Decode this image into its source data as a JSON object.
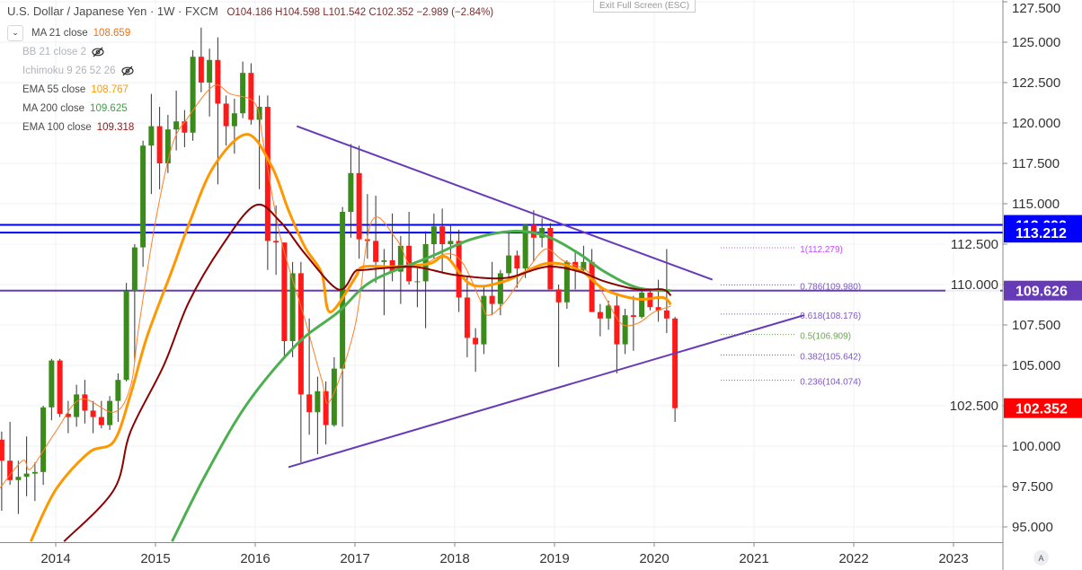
{
  "header": {
    "symbol": "U.S. Dollar / Japanese Yen · 1W · FXCM",
    "ohlc": "O104.186  H104.598  L101.542  C102.352  −2.989 (−2.84%)"
  },
  "tooltip": "Exit Full Screen (ESC)",
  "legend": [
    {
      "name": "MA 21 close",
      "value": "108.659",
      "color": "#ff6d00",
      "visible": true
    },
    {
      "name": "BB 21 close 2",
      "value": "",
      "visible": false,
      "icon": "eye-crossed-icon"
    },
    {
      "name": "Ichimoku 9 26 52 26",
      "value": "",
      "visible": false,
      "icon": "eye-crossed-icon"
    },
    {
      "name": "EMA 55 close",
      "value": "108.767",
      "color": "#ff9800",
      "visible": true
    },
    {
      "name": "MA 200 close",
      "value": "109.625",
      "color": "#43a047",
      "visible": true
    },
    {
      "name": "EMA 100 close",
      "value": "109.318",
      "color": "#a31515",
      "visible": true
    }
  ],
  "auto_button": "A",
  "chart_data": {
    "type": "candlestick",
    "interval": "1W",
    "colors": {
      "up": "#3a8a1c",
      "down": "#ff1a1a",
      "wick": "#333333",
      "grid": "#eef0f4"
    },
    "ylim": [
      93.8,
      128.0
    ],
    "xlim": [
      "2013-06",
      "2023-06"
    ],
    "y_ticks": [
      "127.500",
      "125.000",
      "122.500",
      "120.000",
      "117.500",
      "115.000",
      "112.500",
      "110.000",
      "107.500",
      "105.000",
      "102.500",
      "100.000",
      "97.500",
      "95.000"
    ],
    "x_ticks": [
      "2014",
      "2015",
      "2016",
      "2017",
      "2018",
      "2019",
      "2020",
      "2021",
      "2022",
      "2023"
    ],
    "candles": [
      [
        "2013-06",
        100.4,
        100.9,
        96.0,
        99.1
      ],
      [
        "2013-07",
        99.1,
        101.5,
        97.6,
        97.9
      ],
      [
        "2013-08",
        97.9,
        99.1,
        95.8,
        98.1
      ],
      [
        "2013-09",
        98.1,
        100.6,
        96.9,
        98.3
      ],
      [
        "2013-10",
        98.3,
        99.0,
        96.6,
        98.4
      ],
      [
        "2013-11",
        98.4,
        102.5,
        97.6,
        102.4
      ],
      [
        "2013-12",
        102.4,
        105.4,
        101.6,
        105.3
      ],
      [
        "2014-01",
        105.3,
        105.4,
        101.8,
        102.0
      ],
      [
        "2014-02",
        102.0,
        102.8,
        100.8,
        101.8
      ],
      [
        "2014-03",
        101.8,
        103.8,
        101.2,
        103.2
      ],
      [
        "2014-04",
        103.2,
        104.1,
        101.4,
        102.2
      ],
      [
        "2014-05",
        102.2,
        102.8,
        100.8,
        101.8
      ],
      [
        "2014-06",
        101.8,
        102.8,
        101.1,
        101.3
      ],
      [
        "2014-07",
        101.3,
        103.1,
        101.0,
        102.8
      ],
      [
        "2014-08",
        102.8,
        104.5,
        101.5,
        104.1
      ],
      [
        "2014-09",
        104.1,
        110.1,
        104.0,
        109.6
      ],
      [
        "2014-10",
        109.6,
        112.5,
        105.2,
        112.3
      ],
      [
        "2014-11",
        112.3,
        118.9,
        111.1,
        118.6
      ],
      [
        "2014-12",
        118.6,
        121.8,
        115.6,
        119.8
      ],
      [
        "2015-01",
        119.8,
        121.0,
        115.9,
        117.5
      ],
      [
        "2015-02",
        117.5,
        120.5,
        116.9,
        119.6
      ],
      [
        "2015-03",
        119.6,
        122.0,
        118.3,
        120.1
      ],
      [
        "2015-04",
        120.1,
        120.8,
        118.5,
        119.4
      ],
      [
        "2015-05",
        119.4,
        124.5,
        118.9,
        124.1
      ],
      [
        "2015-06",
        124.1,
        125.9,
        121.9,
        122.5
      ],
      [
        "2015-07",
        122.5,
        124.6,
        120.4,
        123.9
      ],
      [
        "2015-08",
        123.9,
        125.3,
        116.2,
        121.2
      ],
      [
        "2015-09",
        121.2,
        121.7,
        118.6,
        119.8
      ],
      [
        "2015-10",
        119.8,
        121.5,
        118.1,
        120.6
      ],
      [
        "2015-11",
        120.6,
        123.8,
        120.3,
        123.1
      ],
      [
        "2015-12",
        123.1,
        123.7,
        119.9,
        120.2
      ],
      [
        "2016-01",
        120.2,
        121.7,
        115.9,
        121.0
      ],
      [
        "2016-02",
        121.0,
        121.7,
        110.9,
        112.7
      ],
      [
        "2016-03",
        112.7,
        114.9,
        110.6,
        112.6
      ],
      [
        "2016-04",
        112.6,
        112.6,
        105.5,
        106.5
      ],
      [
        "2016-05",
        106.5,
        111.4,
        105.5,
        110.7
      ],
      [
        "2016-06",
        110.7,
        111.4,
        99.0,
        103.2
      ],
      [
        "2016-07",
        103.2,
        107.9,
        100.7,
        102.1
      ],
      [
        "2016-08",
        102.1,
        104.3,
        99.5,
        103.4
      ],
      [
        "2016-09",
        103.4,
        104.0,
        100.1,
        101.3
      ],
      [
        "2016-10",
        101.3,
        105.5,
        101.2,
        104.8
      ],
      [
        "2016-11",
        104.8,
        114.8,
        101.2,
        114.5
      ],
      [
        "2016-12",
        114.5,
        118.7,
        112.9,
        116.9
      ],
      [
        "2017-01",
        116.9,
        118.6,
        111.6,
        112.8
      ],
      [
        "2017-02",
        112.8,
        115.6,
        111.6,
        112.7
      ],
      [
        "2017-03",
        112.7,
        115.5,
        110.1,
        111.4
      ],
      [
        "2017-04",
        111.4,
        112.2,
        108.1,
        111.5
      ],
      [
        "2017-05",
        111.5,
        114.4,
        110.2,
        110.8
      ],
      [
        "2017-06",
        110.8,
        113.0,
        108.8,
        112.4
      ],
      [
        "2017-07",
        112.4,
        114.5,
        110.0,
        110.2
      ],
      [
        "2017-08",
        110.2,
        111.0,
        108.6,
        110.2
      ],
      [
        "2017-09",
        110.2,
        113.3,
        107.3,
        112.5
      ],
      [
        "2017-10",
        112.5,
        114.4,
        111.6,
        113.6
      ],
      [
        "2017-11",
        113.6,
        114.7,
        110.8,
        112.5
      ],
      [
        "2017-12",
        112.5,
        113.7,
        111.4,
        112.7
      ],
      [
        "2018-01",
        112.7,
        113.4,
        108.3,
        109.2
      ],
      [
        "2018-02",
        109.2,
        110.5,
        105.5,
        106.7
      ],
      [
        "2018-03",
        106.7,
        107.3,
        104.6,
        106.3
      ],
      [
        "2018-04",
        106.3,
        109.9,
        105.7,
        109.3
      ],
      [
        "2018-05",
        109.3,
        111.4,
        108.1,
        108.8
      ],
      [
        "2018-06",
        108.8,
        110.9,
        108.1,
        110.7
      ],
      [
        "2018-07",
        110.7,
        113.2,
        110.3,
        111.8
      ],
      [
        "2018-08",
        111.8,
        112.1,
        109.8,
        111.0
      ],
      [
        "2018-09",
        111.0,
        113.7,
        110.4,
        113.7
      ],
      [
        "2018-10",
        113.7,
        114.6,
        111.4,
        112.9
      ],
      [
        "2018-11",
        112.9,
        114.1,
        112.3,
        113.5
      ],
      [
        "2018-12",
        113.5,
        113.8,
        109.9,
        109.7
      ],
      [
        "2019-01",
        109.7,
        110.0,
        104.9,
        108.9
      ],
      [
        "2019-02",
        108.9,
        111.5,
        108.5,
        111.4
      ],
      [
        "2019-03",
        111.4,
        112.1,
        109.7,
        110.9
      ],
      [
        "2019-04",
        110.9,
        112.4,
        110.8,
        111.4
      ],
      [
        "2019-05",
        111.4,
        112.2,
        108.3,
        108.3
      ],
      [
        "2019-06",
        108.3,
        108.8,
        106.8,
        107.9
      ],
      [
        "2019-07",
        107.9,
        109.0,
        107.2,
        108.7
      ],
      [
        "2019-08",
        108.7,
        109.3,
        104.5,
        106.3
      ],
      [
        "2019-09",
        106.3,
        108.5,
        105.7,
        108.1
      ],
      [
        "2019-10",
        108.1,
        109.3,
        105.9,
        108.0
      ],
      [
        "2019-11",
        108.0,
        109.7,
        107.9,
        109.5
      ],
      [
        "2019-12",
        109.5,
        109.7,
        108.4,
        108.6
      ],
      [
        "2020-01",
        108.6,
        110.3,
        107.7,
        108.4
      ],
      [
        "2020-02",
        108.4,
        112.2,
        107.0,
        107.9
      ],
      [
        "2020-03",
        107.9,
        108.0,
        101.5,
        102.352
      ]
    ],
    "indicators": [
      {
        "name": "MA 21 close",
        "color": "#ff7f27",
        "points": [
          [
            "2013-06",
            97.2
          ],
          [
            "2013-09",
            99.1
          ],
          [
            "2013-10",
            98.6
          ],
          [
            "2014-01",
            100.9
          ],
          [
            "2014-04",
            102.9
          ],
          [
            "2014-08",
            102.1
          ],
          [
            "2014-10",
            103.7
          ],
          [
            "2014-11",
            107.4
          ],
          [
            "2015-01",
            113.9
          ],
          [
            "2015-03",
            118.6
          ],
          [
            "2015-05",
            120.4
          ],
          [
            "2015-08",
            122.3
          ],
          [
            "2015-10",
            121.8
          ],
          [
            "2016-01",
            121.2
          ],
          [
            "2016-02",
            118.7
          ],
          [
            "2016-04",
            113.0
          ],
          [
            "2016-07",
            107.8
          ],
          [
            "2016-09",
            104.1
          ],
          [
            "2016-10",
            102.8
          ],
          [
            "2017-01",
            107.4
          ],
          [
            "2017-03",
            113.9
          ],
          [
            "2017-06",
            112.8
          ],
          [
            "2017-08",
            111.1
          ],
          [
            "2017-12",
            111.9
          ],
          [
            "2018-02",
            111.3
          ],
          [
            "2018-04",
            109.1
          ],
          [
            "2018-05",
            108.1
          ],
          [
            "2018-07",
            108.9
          ],
          [
            "2018-10",
            111.1
          ],
          [
            "2018-12",
            112.2
          ],
          [
            "2019-02",
            111.5
          ],
          [
            "2019-05",
            110.8
          ],
          [
            "2019-07",
            109.3
          ],
          [
            "2019-09",
            107.6
          ],
          [
            "2019-11",
            107.6
          ],
          [
            "2020-01",
            108.3
          ],
          [
            "2020-03",
            108.659
          ]
        ]
      },
      {
        "name": "EMA 55 close",
        "color": "#ff9800",
        "points": [
          [
            "2013-10",
            94.1
          ],
          [
            "2014-01",
            97.3
          ],
          [
            "2014-05",
            99.6
          ],
          [
            "2014-08",
            100.3
          ],
          [
            "2014-10",
            103.2
          ],
          [
            "2014-12",
            106.8
          ],
          [
            "2015-03",
            110.9
          ],
          [
            "2015-05",
            113.7
          ],
          [
            "2015-08",
            117.3
          ],
          [
            "2015-12",
            119.3
          ],
          [
            "2016-03",
            117.3
          ],
          [
            "2016-05",
            114.6
          ],
          [
            "2016-07",
            112.3
          ],
          [
            "2016-09",
            110.7
          ],
          [
            "2016-10",
            108.3
          ],
          [
            "2017-01",
            110.4
          ],
          [
            "2017-02",
            111.1
          ],
          [
            "2017-06",
            111.1
          ],
          [
            "2017-10",
            111.3
          ],
          [
            "2017-12",
            111.7
          ],
          [
            "2018-03",
            110.0
          ],
          [
            "2018-07",
            110.2
          ],
          [
            "2018-12",
            111.3
          ],
          [
            "2019-04",
            110.9
          ],
          [
            "2019-07",
            109.7
          ],
          [
            "2019-11",
            109.1
          ],
          [
            "2020-02",
            109.2
          ],
          [
            "2020-03",
            108.767
          ]
        ]
      },
      {
        "name": "MA 200 close",
        "color": "#4caf50",
        "points": [
          [
            "2015-03",
            94.1
          ],
          [
            "2015-07",
            98.2
          ],
          [
            "2015-12",
            102.6
          ],
          [
            "2016-06",
            106.3
          ],
          [
            "2016-11",
            108.3
          ],
          [
            "2017-03",
            110.2
          ],
          [
            "2017-10",
            111.7
          ],
          [
            "2018-03",
            112.8
          ],
          [
            "2018-08",
            113.3
          ],
          [
            "2018-12",
            113.0
          ],
          [
            "2019-04",
            111.9
          ],
          [
            "2019-07",
            110.8
          ],
          [
            "2019-11",
            109.8
          ],
          [
            "2020-03",
            109.625
          ]
        ]
      },
      {
        "name": "EMA 100 close",
        "color": "#8b0000",
        "points": [
          [
            "2014-02",
            94.1
          ],
          [
            "2014-08",
            97.3
          ],
          [
            "2014-10",
            100.9
          ],
          [
            "2015-02",
            105.0
          ],
          [
            "2015-05",
            108.9
          ],
          [
            "2015-09",
            112.4
          ],
          [
            "2016-01",
            114.9
          ],
          [
            "2016-04",
            113.9
          ],
          [
            "2016-07",
            111.9
          ],
          [
            "2016-11",
            109.7
          ],
          [
            "2017-01",
            110.8
          ],
          [
            "2017-02",
            110.9
          ],
          [
            "2017-08",
            111.1
          ],
          [
            "2018-01",
            110.6
          ],
          [
            "2018-07",
            110.4
          ],
          [
            "2018-12",
            111.1
          ],
          [
            "2019-04",
            110.8
          ],
          [
            "2019-07",
            110.2
          ],
          [
            "2019-11",
            109.7
          ],
          [
            "2020-02",
            109.7
          ],
          [
            "2020-03",
            109.318
          ]
        ]
      }
    ],
    "trendlines": [
      {
        "name": "triangle-upper",
        "color": "#673ab7",
        "from": [
          "2016-06",
          119.8
        ],
        "to": [
          "2020-08",
          110.3
        ]
      },
      {
        "name": "triangle-lower",
        "color": "#673ab7",
        "from": [
          "2016-05",
          98.7
        ],
        "to": [
          "2021-07",
          108.1
        ]
      }
    ],
    "horizontal_lines": [
      {
        "price": 113.692,
        "label": "113.692",
        "color": "#0000ff"
      },
      {
        "price": 113.212,
        "label": "113.212",
        "color": "#0000ff"
      },
      {
        "price": 109.626,
        "label": "109.626",
        "color": "#673ab7"
      }
    ],
    "last_price": {
      "price": 102.352,
      "label": "102.352",
      "color": "#ff0000"
    },
    "fibonacci": {
      "from": "2020-09",
      "to": "2021-06",
      "levels": [
        {
          "label": "1(112.279)",
          "price": 112.279,
          "color": "#c04cff"
        },
        {
          "label": "0.786(109.980)",
          "price": 109.98,
          "color": "#7e57c2"
        },
        {
          "label": "0.618(108.176)",
          "price": 108.176,
          "color": "#7e57c2"
        },
        {
          "label": "0.5(106.909)",
          "price": 106.909,
          "color": "#6aa84f"
        },
        {
          "label": "0.382(105.642)",
          "price": 105.642,
          "color": "#7e57c2"
        },
        {
          "label": "0.236(104.074)",
          "price": 104.074,
          "color": "#7e57c2"
        }
      ]
    }
  }
}
